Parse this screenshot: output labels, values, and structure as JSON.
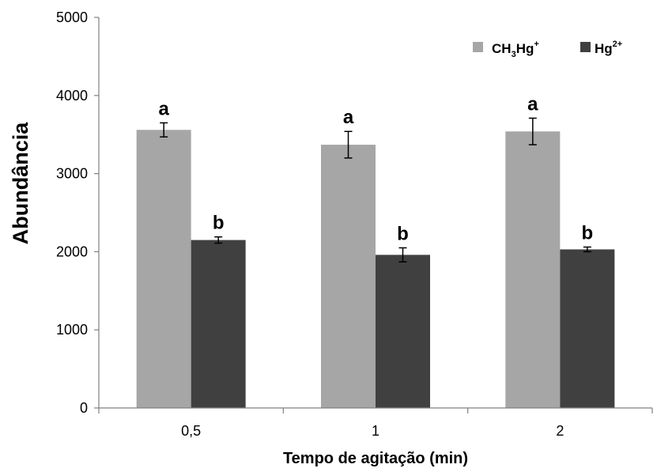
{
  "chart_data": {
    "type": "bar",
    "title": "",
    "xlabel": "Tempo de agitação (min)",
    "ylabel": "Abundância",
    "categories": [
      "0,5",
      "1",
      "2"
    ],
    "ylim": [
      0,
      5000
    ],
    "yticks": [
      0,
      1000,
      2000,
      3000,
      4000,
      5000
    ],
    "grid": false,
    "legend_position": "top-right",
    "series": [
      {
        "name": "CH3Hg+",
        "name_parts": {
          "a": "CH",
          "b": "3",
          "c": "Hg",
          "d": "+"
        },
        "color": "#a6a6a6",
        "values": [
          3560,
          3370,
          3540
        ],
        "errors": [
          90,
          170,
          170
        ],
        "labels": [
          "a",
          "a",
          "a"
        ]
      },
      {
        "name": "Hg2+",
        "name_parts": {
          "a": "Hg",
          "b": "2+"
        },
        "color": "#404040",
        "values": [
          2150,
          1960,
          2030
        ],
        "errors": [
          40,
          90,
          30
        ],
        "labels": [
          "b",
          "b",
          "b"
        ]
      }
    ]
  }
}
